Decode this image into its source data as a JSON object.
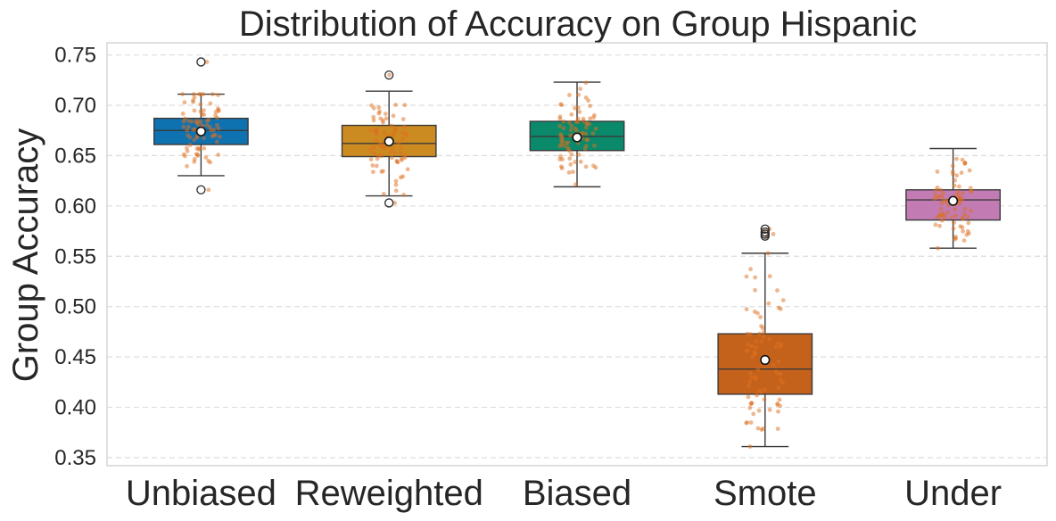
{
  "chart_data": {
    "type": "box",
    "title": "Distribution of Accuracy on Group Hispanic",
    "xlabel": "",
    "ylabel": "Group Accuracy",
    "ylim": [
      0.342,
      0.762
    ],
    "yticks": [
      "0.35",
      "0.40",
      "0.45",
      "0.50",
      "0.55",
      "0.60",
      "0.65",
      "0.70",
      "0.75"
    ],
    "grid": "y-dashed",
    "point_color": "#dd6f1f",
    "categories": [
      "Unbiased",
      "Reweighted",
      "Biased",
      "Smote",
      "Under"
    ],
    "series": [
      {
        "label": "Unbiased",
        "color": "#0f72b0",
        "q1": 0.661,
        "median": 0.675,
        "q3": 0.687,
        "whisker_low": 0.63,
        "whisker_high": 0.711,
        "mean": 0.674,
        "outliers": [
          0.616,
          0.743
        ]
      },
      {
        "label": "Reweighted",
        "color": "#cc8b20",
        "q1": 0.649,
        "median": 0.662,
        "q3": 0.68,
        "whisker_low": 0.61,
        "whisker_high": 0.714,
        "mean": 0.664,
        "outliers": [
          0.603,
          0.73
        ]
      },
      {
        "label": "Biased",
        "color": "#0a8a6a",
        "q1": 0.655,
        "median": 0.669,
        "q3": 0.684,
        "whisker_low": 0.619,
        "whisker_high": 0.723,
        "mean": 0.668,
        "outliers": []
      },
      {
        "label": "Smote",
        "color": "#c4621c",
        "q1": 0.413,
        "median": 0.438,
        "q3": 0.473,
        "whisker_low": 0.361,
        "whisker_high": 0.553,
        "mean": 0.447,
        "outliers": [
          0.57,
          0.572,
          0.574,
          0.577
        ]
      },
      {
        "label": "Under",
        "color": "#c27bb3",
        "q1": 0.586,
        "median": 0.606,
        "q3": 0.616,
        "whisker_low": 0.558,
        "whisker_high": 0.657,
        "mean": 0.605,
        "outliers": []
      }
    ]
  }
}
